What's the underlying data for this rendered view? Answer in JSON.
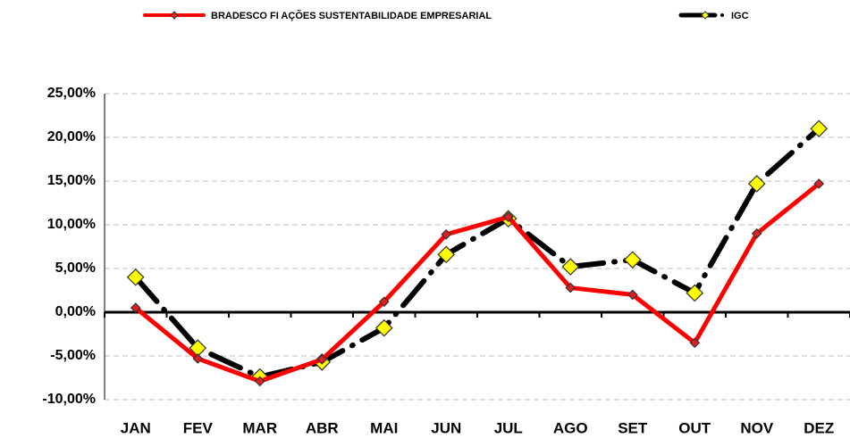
{
  "chart_data": {
    "type": "line",
    "categories": [
      "JAN",
      "FEV",
      "MAR",
      "ABR",
      "MAI",
      "JUN",
      "JUL",
      "AGO",
      "SET",
      "OUT",
      "NOV",
      "DEZ"
    ],
    "series": [
      {
        "name": "BRADESCO FI AÇÕES SUSTENTABILIDADE EMPRESARIAL",
        "color": "#ff0000",
        "marker_color": "#e02020",
        "values": [
          0.5,
          -5.3,
          -7.9,
          -5.4,
          1.2,
          8.9,
          10.9,
          2.8,
          2.0,
          -3.5,
          9.0,
          14.7
        ]
      },
      {
        "name": "IGC",
        "color": "#000000",
        "marker_color": "#ffff00",
        "values": [
          4.0,
          -4.1,
          -7.4,
          -5.7,
          -1.8,
          6.6,
          10.7,
          5.2,
          6.0,
          2.2,
          14.7,
          21.0
        ]
      }
    ],
    "ylim": [
      -10,
      25
    ],
    "yticks": [
      {
        "value": -10,
        "label": "-10,00%"
      },
      {
        "value": -5,
        "label": "-5,00%"
      },
      {
        "value": 0,
        "label": "0,00%"
      },
      {
        "value": 5,
        "label": "5,00%"
      },
      {
        "value": 10,
        "label": "10,00%"
      },
      {
        "value": 15,
        "label": "15,00%"
      },
      {
        "value": 20,
        "label": "20,00%"
      },
      {
        "value": 25,
        "label": "25,00%"
      }
    ],
    "grid": true,
    "legend": "top"
  }
}
